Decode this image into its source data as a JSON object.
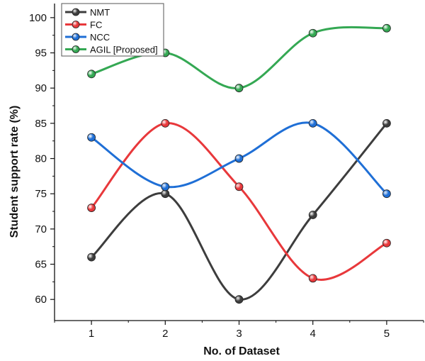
{
  "chart_data": {
    "type": "line",
    "x": [
      1,
      2,
      3,
      4,
      5
    ],
    "xlabel": "No. of Dataset",
    "ylabel": "Student support rate (%)",
    "xlim": [
      0.5,
      5.5
    ],
    "ylim": [
      57,
      102
    ],
    "yticks": [
      60,
      65,
      70,
      75,
      80,
      85,
      90,
      95,
      100
    ],
    "grid": false,
    "legend": "top-left",
    "smooth": true,
    "series": [
      {
        "name": "NMT",
        "color": "#3d3d3d",
        "values": [
          66,
          75,
          60,
          72,
          85
        ]
      },
      {
        "name": "FC",
        "color": "#e8383b",
        "values": [
          73,
          85,
          76,
          63,
          68
        ]
      },
      {
        "name": "NCC",
        "color": "#1f6fd6",
        "values": [
          83,
          76,
          80,
          85,
          75
        ]
      },
      {
        "name": "AGIL [Proposed]",
        "color": "#34a853",
        "values": [
          92,
          95,
          90,
          97.8,
          98.5
        ]
      }
    ]
  }
}
